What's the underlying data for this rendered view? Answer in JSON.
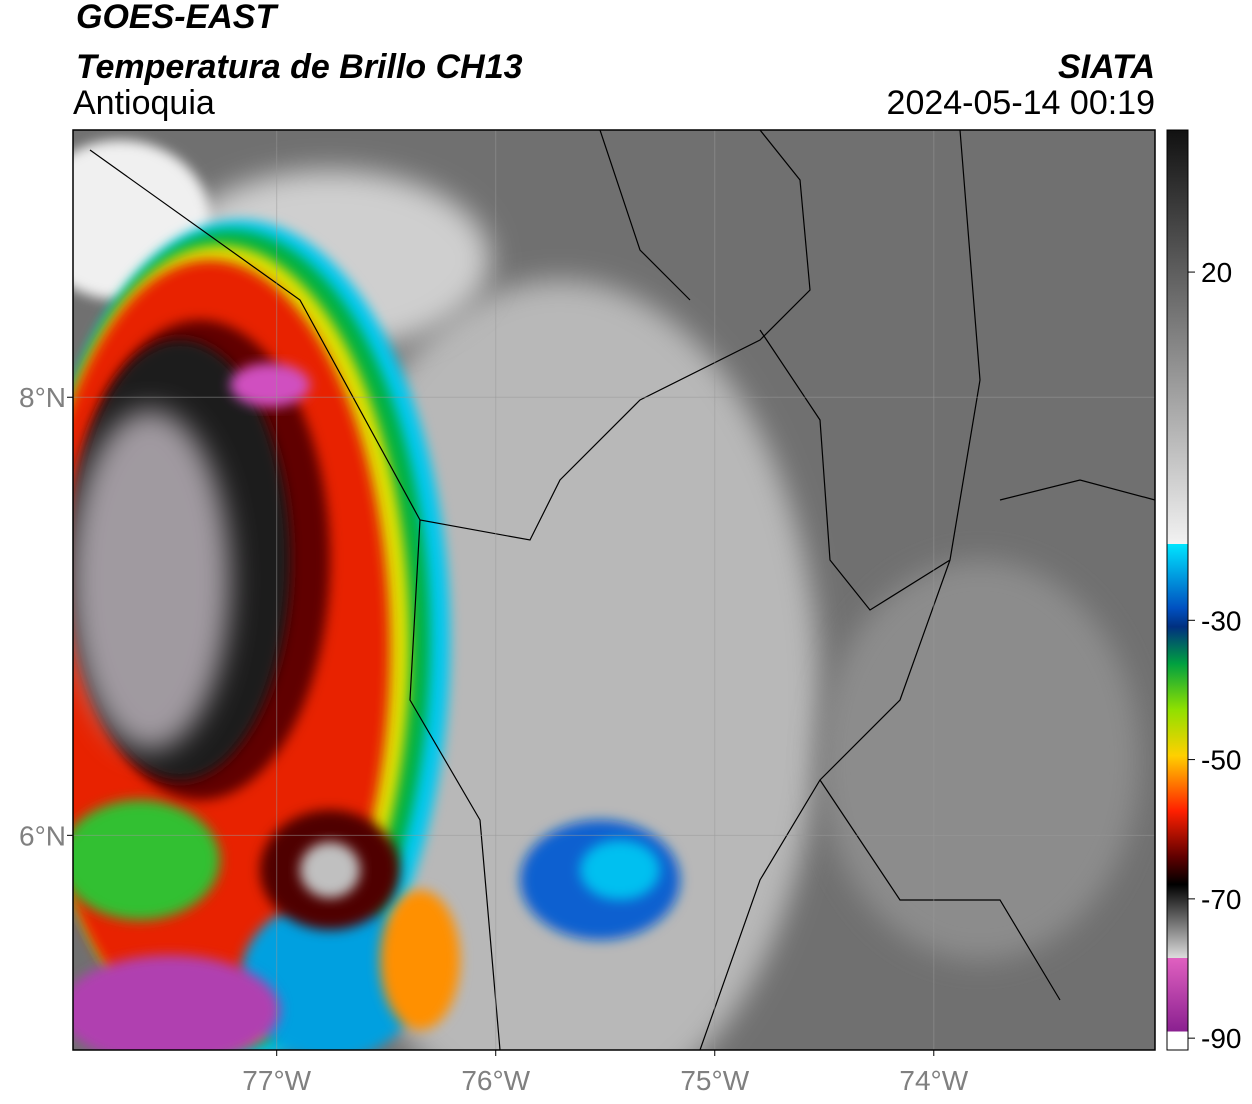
{
  "header": {
    "title": "GOES-EAST",
    "subtitle": "Temperatura de Brillo CH13",
    "region": "Antioquia",
    "source": "SIATA",
    "datetime": "2024-05-14 00:19"
  },
  "map": {
    "lonlim": [
      -77.93,
      -72.99
    ],
    "latlim": [
      5.02,
      9.22
    ],
    "lonticks": [
      {
        "value": -77,
        "label": "77°W"
      },
      {
        "value": -76,
        "label": "76°W"
      },
      {
        "value": -75,
        "label": "75°W"
      },
      {
        "value": -74,
        "label": "74°W"
      }
    ],
    "latticks": [
      {
        "value": 8,
        "label": "8°N"
      },
      {
        "value": 6,
        "label": "6°N"
      }
    ],
    "grid": true
  },
  "colorbar": {
    "lim": [
      -91.7,
      40.4
    ],
    "ticks": [
      20,
      -30,
      -50,
      -70,
      -90
    ]
  }
}
